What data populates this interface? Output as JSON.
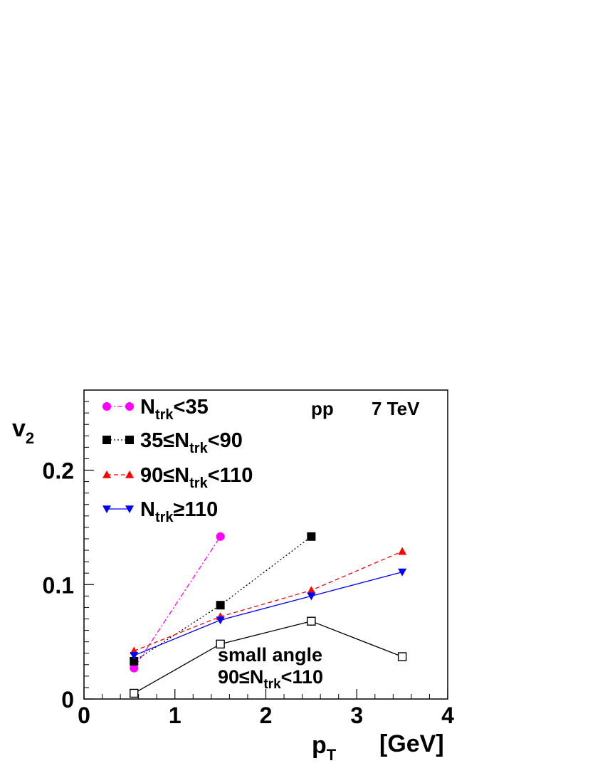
{
  "chart_data": {
    "type": "line",
    "xlabel": {
      "main": "p",
      "sub": "T",
      "unit": "[GeV]"
    },
    "ylabel": {
      "main": "v",
      "sub": "2"
    },
    "xlim": [
      0,
      4
    ],
    "ylim": [
      0,
      0.27
    ],
    "x_tick_labels": [
      "0",
      "1",
      "2",
      "3",
      "4"
    ],
    "y_tick_labels": [
      "0",
      "0.1",
      "0.2"
    ],
    "y_tick_values": [
      0,
      0.1,
      0.2
    ],
    "header_text": {
      "system": "pp",
      "energy": "7 TeV"
    },
    "annotation": {
      "line1": "small angle",
      "line2_pre": "90≤N",
      "line2_sub": "trk",
      "line2_post": "<110"
    },
    "legend_position": "top-left",
    "series": [
      {
        "id": "s1",
        "legend": {
          "pre": "N",
          "sub": "trk",
          "post": "<35"
        },
        "color": "#ff00ff",
        "marker": "circle",
        "line": "dashdot",
        "x": [
          0.55,
          1.5
        ],
        "y": [
          0.027,
          0.142
        ]
      },
      {
        "id": "s2",
        "legend": {
          "pre": "35≤N",
          "sub": "trk",
          "post": "<90"
        },
        "color": "#000000",
        "marker": "square",
        "line": "dotted",
        "x": [
          0.55,
          1.5,
          2.5
        ],
        "y": [
          0.033,
          0.082,
          0.142
        ]
      },
      {
        "id": "s3",
        "legend": {
          "pre": "90≤N",
          "sub": "trk",
          "post": "<110"
        },
        "color": "#ff0000",
        "marker": "triangle-up",
        "line": "dashed",
        "x": [
          0.55,
          1.5,
          2.5,
          3.5
        ],
        "y": [
          0.042,
          0.072,
          0.095,
          0.129
        ]
      },
      {
        "id": "s4",
        "legend": {
          "pre": "N",
          "sub": "trk",
          "post": "≥110"
        },
        "color": "#0000ff",
        "marker": "triangle-down",
        "line": "solid",
        "x": [
          0.55,
          1.5,
          2.5,
          3.5
        ],
        "y": [
          0.038,
          0.069,
          0.09,
          0.111
        ]
      },
      {
        "id": "s5",
        "legend": null,
        "color": "#000000",
        "marker": "open-square",
        "line": "solid",
        "x": [
          0.55,
          1.5,
          2.5,
          3.5
        ],
        "y": [
          0.005,
          0.048,
          0.068,
          0.037
        ]
      }
    ]
  }
}
